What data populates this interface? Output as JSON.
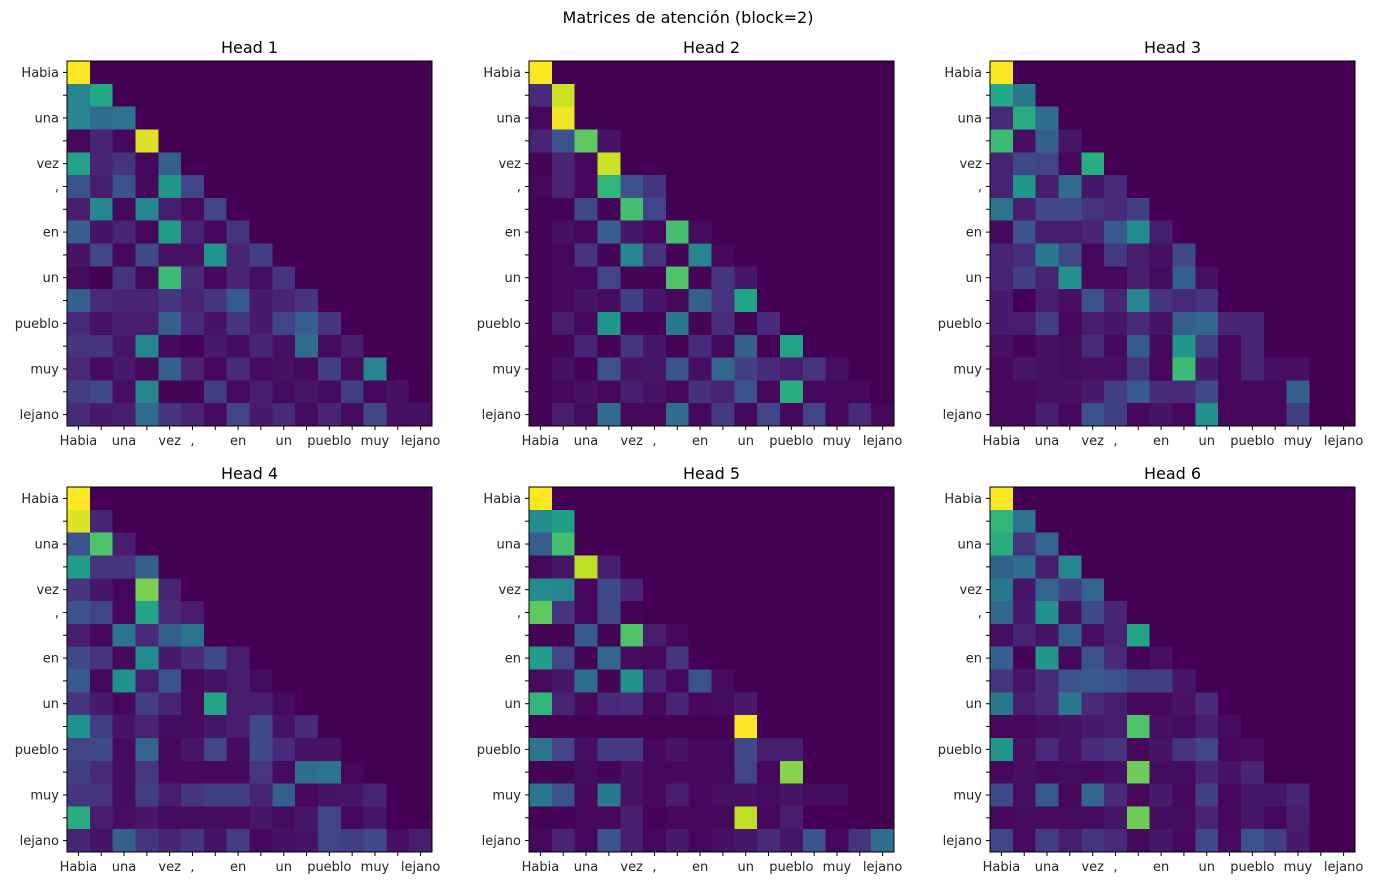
{
  "figure": {
    "suptitle": "Matrices de atención (block=2)",
    "colormap": "viridis"
  },
  "chart_data": {
    "type": "heatmap",
    "title": "Matrices de atención (block=2)",
    "layout": "2x3 grid",
    "colormap": "viridis",
    "value_range": [
      0,
      1
    ],
    "tokens": [
      "Habia",
      "",
      "una",
      "",
      "vez",
      ",",
      "",
      "en",
      "",
      "un",
      "",
      "pueblo",
      "",
      "muy",
      "",
      "lejano"
    ],
    "xlabel": "",
    "ylabel": "",
    "heads": [
      {
        "title": "Head 1",
        "matrix": [
          [
            1.0
          ],
          [
            0.45,
            0.6
          ],
          [
            0.45,
            0.35,
            0.38
          ],
          [
            0.02,
            0.1,
            0.02,
            0.95
          ],
          [
            0.58,
            0.1,
            0.15,
            0.02,
            0.3
          ],
          [
            0.25,
            0.08,
            0.25,
            0.02,
            0.52,
            0.2
          ],
          [
            0.08,
            0.45,
            0.02,
            0.45,
            0.08,
            0.03,
            0.2
          ],
          [
            0.3,
            0.05,
            0.1,
            0.02,
            0.55,
            0.1,
            0.02,
            0.15
          ],
          [
            0.05,
            0.2,
            0.02,
            0.22,
            0.05,
            0.05,
            0.52,
            0.1,
            0.18
          ],
          [
            0.03,
            0.0,
            0.15,
            0.02,
            0.68,
            0.12,
            0.02,
            0.1,
            0.04,
            0.15
          ],
          [
            0.3,
            0.12,
            0.1,
            0.1,
            0.15,
            0.1,
            0.15,
            0.28,
            0.07,
            0.1,
            0.15
          ],
          [
            0.12,
            0.05,
            0.08,
            0.08,
            0.3,
            0.12,
            0.05,
            0.15,
            0.07,
            0.2,
            0.3,
            0.15
          ],
          [
            0.15,
            0.15,
            0.06,
            0.45,
            0.02,
            0.01,
            0.07,
            0.03,
            0.1,
            0.04,
            0.35,
            0.03,
            0.08
          ],
          [
            0.12,
            0.03,
            0.07,
            0.02,
            0.3,
            0.1,
            0.02,
            0.12,
            0.03,
            0.04,
            0.02,
            0.18,
            0.03,
            0.45
          ],
          [
            0.18,
            0.22,
            0.04,
            0.45,
            0.01,
            0.01,
            0.18,
            0.03,
            0.08,
            0.03,
            0.06,
            0.03,
            0.18,
            0.02,
            0.04
          ],
          [
            0.12,
            0.07,
            0.08,
            0.35,
            0.15,
            0.1,
            0.03,
            0.2,
            0.07,
            0.12,
            0.03,
            0.1,
            0.03,
            0.22,
            0.04,
            0.04
          ]
        ]
      },
      {
        "title": "Head 2",
        "matrix": [
          [
            1.0
          ],
          [
            0.12,
            0.92
          ],
          [
            0.02,
            0.98
          ],
          [
            0.1,
            0.25,
            0.75,
            0.05
          ],
          [
            0.01,
            0.1,
            0.02,
            0.92
          ],
          [
            0.02,
            0.1,
            0.02,
            0.65,
            0.25,
            0.15
          ],
          [
            0.01,
            0.01,
            0.22,
            0.01,
            0.7,
            0.2
          ],
          [
            0.01,
            0.04,
            0.02,
            0.3,
            0.06,
            0.02,
            0.7,
            0.03
          ],
          [
            0.01,
            0.02,
            0.15,
            0.01,
            0.45,
            0.15,
            0.01,
            0.45,
            0.02
          ],
          [
            0.01,
            0.02,
            0.02,
            0.2,
            0.01,
            0.01,
            0.72,
            0.01,
            0.15,
            0.06
          ],
          [
            0.01,
            0.02,
            0.05,
            0.03,
            0.18,
            0.06,
            0.02,
            0.3,
            0.15,
            0.58
          ],
          [
            0.01,
            0.08,
            0.02,
            0.52,
            0.01,
            0.01,
            0.4,
            0.01,
            0.13,
            0.01,
            0.12
          ],
          [
            0.01,
            0.01,
            0.1,
            0.01,
            0.15,
            0.06,
            0.01,
            0.12,
            0.02,
            0.3,
            0.01,
            0.58
          ],
          [
            0.01,
            0.04,
            0.01,
            0.25,
            0.05,
            0.06,
            0.25,
            0.04,
            0.33,
            0.18,
            0.12,
            0.08,
            0.15,
            0.04
          ],
          [
            0.01,
            0.02,
            0.04,
            0.02,
            0.08,
            0.05,
            0.02,
            0.14,
            0.1,
            0.25,
            0.02,
            0.62,
            0.02,
            0.02,
            0.02
          ],
          [
            0.01,
            0.08,
            0.03,
            0.35,
            0.02,
            0.02,
            0.35,
            0.02,
            0.17,
            0.02,
            0.2,
            0.02,
            0.2,
            0.02,
            0.12,
            0.02
          ]
        ]
      },
      {
        "title": "Head 3",
        "matrix": [
          [
            1.0
          ],
          [
            0.6,
            0.4
          ],
          [
            0.12,
            0.62,
            0.35
          ],
          [
            0.68,
            0.04,
            0.3,
            0.06
          ],
          [
            0.1,
            0.22,
            0.2,
            0.02,
            0.62
          ],
          [
            0.1,
            0.52,
            0.08,
            0.35,
            0.06,
            0.12
          ],
          [
            0.38,
            0.08,
            0.22,
            0.22,
            0.15,
            0.12,
            0.18
          ],
          [
            0.02,
            0.25,
            0.08,
            0.08,
            0.1,
            0.28,
            0.48,
            0.08
          ],
          [
            0.1,
            0.13,
            0.4,
            0.22,
            0.02,
            0.17,
            0.08,
            0.04,
            0.22
          ],
          [
            0.1,
            0.18,
            0.1,
            0.5,
            0.02,
            0.02,
            0.08,
            0.03,
            0.3,
            0.04
          ],
          [
            0.07,
            0.0,
            0.08,
            0.04,
            0.25,
            0.1,
            0.45,
            0.15,
            0.12,
            0.15
          ],
          [
            0.07,
            0.08,
            0.18,
            0.02,
            0.08,
            0.06,
            0.12,
            0.05,
            0.3,
            0.33,
            0.1,
            0.1
          ],
          [
            0.04,
            0.01,
            0.04,
            0.03,
            0.12,
            0.02,
            0.28,
            0.02,
            0.52,
            0.18,
            0.02,
            0.1
          ],
          [
            0.02,
            0.06,
            0.04,
            0.03,
            0.04,
            0.04,
            0.15,
            0.02,
            0.68,
            0.07,
            0.02,
            0.1,
            0.04,
            0.04
          ],
          [
            0.02,
            0.02,
            0.04,
            0.04,
            0.07,
            0.18,
            0.28,
            0.12,
            0.12,
            0.22,
            0.02,
            0.02,
            0.02,
            0.3
          ],
          [
            0.02,
            0.02,
            0.08,
            0.02,
            0.25,
            0.18,
            0.02,
            0.05,
            0.02,
            0.5,
            0.02,
            0.02,
            0.02,
            0.18
          ]
        ]
      },
      {
        "title": "Head 4",
        "matrix": [
          [
            1.0
          ],
          [
            0.95,
            0.1
          ],
          [
            0.25,
            0.72,
            0.08
          ],
          [
            0.55,
            0.15,
            0.15,
            0.3
          ],
          [
            0.15,
            0.06,
            0.02,
            0.8,
            0.1
          ],
          [
            0.25,
            0.2,
            0.02,
            0.58,
            0.12,
            0.08
          ],
          [
            0.08,
            0.02,
            0.38,
            0.12,
            0.3,
            0.38
          ],
          [
            0.22,
            0.15,
            0.02,
            0.48,
            0.07,
            0.12,
            0.22,
            0.08
          ],
          [
            0.28,
            0.02,
            0.5,
            0.08,
            0.25,
            0.02,
            0.05,
            0.08,
            0.03
          ],
          [
            0.15,
            0.07,
            0.02,
            0.18,
            0.1,
            0.03,
            0.58,
            0.08,
            0.08,
            0.03
          ],
          [
            0.5,
            0.18,
            0.05,
            0.1,
            0.03,
            0.03,
            0.06,
            0.08,
            0.22,
            0.05,
            0.12
          ],
          [
            0.2,
            0.22,
            0.03,
            0.32,
            0.02,
            0.06,
            0.2,
            0.03,
            0.22,
            0.12,
            0.05,
            0.05
          ],
          [
            0.18,
            0.12,
            0.03,
            0.16,
            0.02,
            0.02,
            0.02,
            0.02,
            0.16,
            0.03,
            0.35,
            0.38,
            0.02
          ],
          [
            0.15,
            0.15,
            0.03,
            0.18,
            0.08,
            0.15,
            0.18,
            0.18,
            0.1,
            0.3,
            0.02,
            0.05,
            0.06,
            0.1
          ],
          [
            0.62,
            0.08,
            0.04,
            0.06,
            0.03,
            0.03,
            0.03,
            0.03,
            0.06,
            0.03,
            0.06,
            0.2,
            0.02,
            0.06
          ],
          [
            0.1,
            0.05,
            0.3,
            0.15,
            0.1,
            0.15,
            0.05,
            0.18,
            0.02,
            0.04,
            0.05,
            0.2,
            0.18,
            0.22,
            0.04,
            0.08
          ]
        ]
      },
      {
        "title": "Head 5",
        "matrix": [
          [
            1.0
          ],
          [
            0.48,
            0.56
          ],
          [
            0.3,
            0.7
          ],
          [
            0.02,
            0.06,
            0.9,
            0.08
          ],
          [
            0.48,
            0.45,
            0.02,
            0.22,
            0.1
          ],
          [
            0.75,
            0.15,
            0.02,
            0.22,
            0.01
          ],
          [
            0.01,
            0.01,
            0.28,
            0.01,
            0.72,
            0.08,
            0.02
          ],
          [
            0.55,
            0.2,
            0.01,
            0.32,
            0.03,
            0.02,
            0.15
          ],
          [
            0.03,
            0.06,
            0.35,
            0.01,
            0.5,
            0.1,
            0.02,
            0.25,
            0.03
          ],
          [
            0.65,
            0.1,
            0.02,
            0.12,
            0.13,
            0.02,
            0.1,
            0.02,
            0.03,
            0.07
          ],
          [
            0.01,
            0.01,
            0.01,
            0.01,
            0.01,
            0.01,
            0.01,
            0.01,
            0.01,
            1.0
          ],
          [
            0.38,
            0.2,
            0.04,
            0.17,
            0.17,
            0.02,
            0.05,
            0.02,
            0.02,
            0.22,
            0.08,
            0.08
          ],
          [
            0.01,
            0.01,
            0.03,
            0.01,
            0.05,
            0.02,
            0.02,
            0.02,
            0.02,
            0.2,
            0.02,
            0.82
          ],
          [
            0.4,
            0.25,
            0.02,
            0.4,
            0.05,
            0.02,
            0.08,
            0.02,
            0.04,
            0.04,
            0.03,
            0.05,
            0.03,
            0.03
          ],
          [
            0.01,
            0.01,
            0.02,
            0.02,
            0.08,
            0.01,
            0.02,
            0.02,
            0.02,
            0.9,
            0.02,
            0.08
          ],
          [
            0.02,
            0.1,
            0.02,
            0.25,
            0.08,
            0.02,
            0.07,
            0.02,
            0.04,
            0.06,
            0.12,
            0.06,
            0.25,
            0.02,
            0.15,
            0.35
          ]
        ]
      },
      {
        "title": "Head 6",
        "matrix": [
          [
            1.0
          ],
          [
            0.65,
            0.38
          ],
          [
            0.62,
            0.15,
            0.32
          ],
          [
            0.3,
            0.35,
            0.08,
            0.45
          ],
          [
            0.4,
            0.06,
            0.32,
            0.18,
            0.32
          ],
          [
            0.33,
            0.07,
            0.5,
            0.04,
            0.22,
            0.1
          ],
          [
            0.04,
            0.1,
            0.05,
            0.3,
            0.04,
            0.1,
            0.58
          ],
          [
            0.3,
            0.01,
            0.52,
            0.02,
            0.25,
            0.12,
            0.01,
            0.04
          ],
          [
            0.15,
            0.06,
            0.12,
            0.25,
            0.28,
            0.25,
            0.18,
            0.18,
            0.06
          ],
          [
            0.4,
            0.08,
            0.12,
            0.4,
            0.12,
            0.08,
            0.02,
            0.02,
            0.05,
            0.12
          ],
          [
            0.02,
            0.02,
            0.04,
            0.05,
            0.07,
            0.08,
            0.72,
            0.04,
            0.03,
            0.08,
            0.03
          ],
          [
            0.52,
            0.04,
            0.12,
            0.05,
            0.12,
            0.15,
            0.02,
            0.05,
            0.15,
            0.2,
            0.02,
            0.03
          ],
          [
            0.02,
            0.04,
            0.02,
            0.03,
            0.02,
            0.04,
            0.78,
            0.03,
            0.03,
            0.1,
            0.05,
            0.1
          ],
          [
            0.22,
            0.04,
            0.28,
            0.02,
            0.32,
            0.12,
            0.02,
            0.07,
            0.02,
            0.18,
            0.02,
            0.06,
            0.06,
            0.1
          ],
          [
            0.02,
            0.03,
            0.03,
            0.03,
            0.03,
            0.06,
            0.78,
            0.03,
            0.03,
            0.1,
            0.02,
            0.06,
            0.02,
            0.08
          ],
          [
            0.2,
            0.03,
            0.18,
            0.08,
            0.15,
            0.12,
            0.02,
            0.06,
            0.02,
            0.22,
            0.03,
            0.25,
            0.18,
            0.07
          ]
        ]
      }
    ]
  }
}
